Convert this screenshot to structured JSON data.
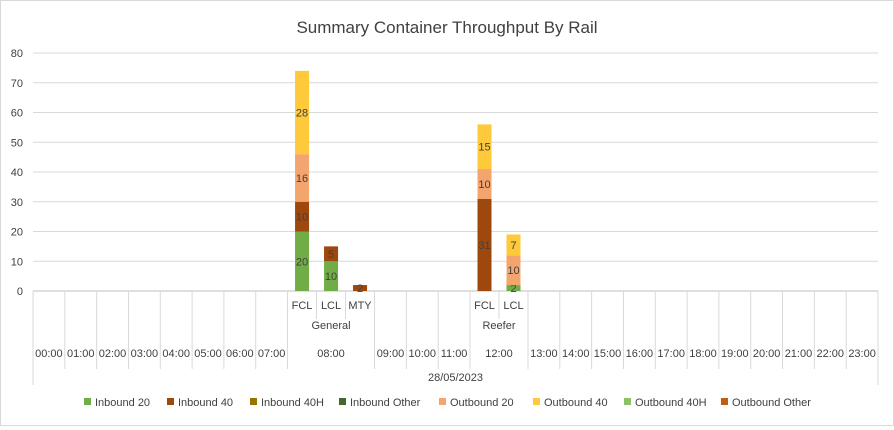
{
  "chart_data": {
    "type": "bar",
    "stacked": true,
    "title": "Summary Container Throughput By Rail",
    "xlabel": "",
    "ylabel": "",
    "ylim": [
      0,
      80
    ],
    "yticks": [
      0,
      10,
      20,
      30,
      40,
      50,
      60,
      70,
      80
    ],
    "grid": true,
    "legend_position": "bottom",
    "date_label": "28/05/2023",
    "hours": [
      "00:00",
      "01:00",
      "02:00",
      "03:00",
      "04:00",
      "05:00",
      "06:00",
      "07:00",
      "08:00",
      "09:00",
      "10:00",
      "11:00",
      "12:00",
      "13:00",
      "14:00",
      "15:00",
      "16:00",
      "17:00",
      "18:00",
      "19:00",
      "20:00",
      "21:00",
      "22:00",
      "23:00"
    ],
    "hour_groups": [
      {
        "hour": "08:00",
        "group_label": "General",
        "categories": [
          "FCL",
          "LCL",
          "MTY"
        ]
      },
      {
        "hour": "12:00",
        "group_label": "Reefer",
        "categories": [
          "FCL",
          "LCL"
        ]
      }
    ],
    "series": [
      {
        "name": "Inbound 20",
        "color": "#70ad47"
      },
      {
        "name": "Inbound 40",
        "color": "#9e480e"
      },
      {
        "name": "Inbound 40H",
        "color": "#997300"
      },
      {
        "name": "Inbound Other",
        "color": "#43682b"
      },
      {
        "name": "Outbound 20",
        "color": "#f4a46d"
      },
      {
        "name": "Outbound 40",
        "color": "#ffc93c"
      },
      {
        "name": "Outbound 40H",
        "color": "#8cc168"
      },
      {
        "name": "Outbound Other",
        "color": "#c55a11"
      }
    ],
    "bars": [
      {
        "hour": "08:00",
        "category": "FCL",
        "segments": [
          {
            "series": "Inbound 20",
            "value": 20,
            "label": "20"
          },
          {
            "series": "Inbound 40",
            "value": 10,
            "label": "10"
          },
          {
            "series": "Outbound 20",
            "value": 16,
            "label": "16"
          },
          {
            "series": "Outbound 40",
            "value": 28,
            "label": "28"
          }
        ]
      },
      {
        "hour": "08:00",
        "category": "LCL",
        "segments": [
          {
            "series": "Inbound 20",
            "value": 10,
            "label": "10"
          },
          {
            "series": "Inbound 40",
            "value": 5,
            "label": "5"
          }
        ]
      },
      {
        "hour": "08:00",
        "category": "MTY",
        "segments": [
          {
            "series": "Inbound 40",
            "value": 2,
            "label": "2"
          }
        ]
      },
      {
        "hour": "12:00",
        "category": "FCL",
        "segments": [
          {
            "series": "Inbound 40",
            "value": 31,
            "label": "31"
          },
          {
            "series": "Outbound 20",
            "value": 10,
            "label": "10"
          },
          {
            "series": "Outbound 40",
            "value": 15,
            "label": "15"
          }
        ]
      },
      {
        "hour": "12:00",
        "category": "LCL",
        "segments": [
          {
            "series": "Inbound 20",
            "value": 2,
            "label": "2"
          },
          {
            "series": "Outbound 20",
            "value": 10,
            "label": "10"
          },
          {
            "series": "Outbound 40",
            "value": 7,
            "label": "7"
          }
        ]
      }
    ]
  }
}
